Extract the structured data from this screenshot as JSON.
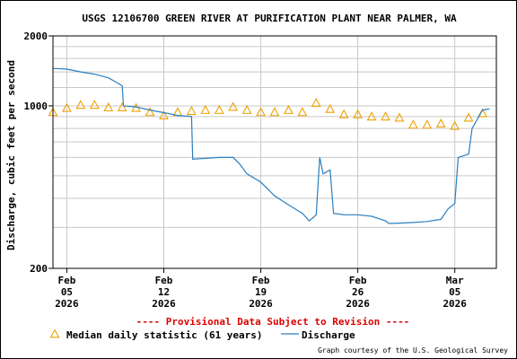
{
  "chart_data": {
    "type": "line",
    "title": "USGS 12106700 GREEN RIVER AT PURIFICATION PLANT NEAR PALMER, WA",
    "ylabel": "Discharge, cubic feet per second",
    "xlabel": "",
    "yscale": "log",
    "ylim": [
      200,
      2000
    ],
    "xlim": [
      "2026-02-04",
      "2026-03-08"
    ],
    "y_ticks": [
      {
        "value": 200,
        "label": "200"
      },
      {
        "value": 1000,
        "label": "1000"
      },
      {
        "value": 2000,
        "label": "2000"
      }
    ],
    "x_ticks": [
      {
        "date": "2026-02-05",
        "month": "Feb",
        "day": "05",
        "year": "2026"
      },
      {
        "date": "2026-02-12",
        "month": "Feb",
        "day": "12",
        "year": "2026"
      },
      {
        "date": "2026-02-19",
        "month": "Feb",
        "day": "19",
        "year": "2026"
      },
      {
        "date": "2026-02-26",
        "month": "Feb",
        "day": "26",
        "year": "2026"
      },
      {
        "date": "2026-03-05",
        "month": "Mar",
        "day": "05",
        "year": "2026"
      }
    ],
    "grid": true,
    "series": [
      {
        "name": "Median daily statistic (61 years)",
        "kind": "marker-triangle",
        "color": "#f0a000",
        "points": [
          [
            "2026-02-04",
            940
          ],
          [
            "2026-02-05",
            980
          ],
          [
            "2026-02-06",
            1010
          ],
          [
            "2026-02-07",
            1010
          ],
          [
            "2026-02-08",
            985
          ],
          [
            "2026-02-09",
            985
          ],
          [
            "2026-02-10",
            980
          ],
          [
            "2026-02-11",
            940
          ],
          [
            "2026-02-12",
            910
          ],
          [
            "2026-02-13",
            940
          ],
          [
            "2026-02-14",
            950
          ],
          [
            "2026-02-15",
            960
          ],
          [
            "2026-02-16",
            960
          ],
          [
            "2026-02-17",
            990
          ],
          [
            "2026-02-18",
            960
          ],
          [
            "2026-02-19",
            940
          ],
          [
            "2026-02-20",
            940
          ],
          [
            "2026-02-21",
            960
          ],
          [
            "2026-02-22",
            940
          ],
          [
            "2026-02-23",
            1030
          ],
          [
            "2026-02-24",
            970
          ],
          [
            "2026-02-25",
            920
          ],
          [
            "2026-02-26",
            920
          ],
          [
            "2026-02-27",
            900
          ],
          [
            "2026-02-28",
            900
          ],
          [
            "2026-03-01",
            890
          ],
          [
            "2026-03-02",
            830
          ],
          [
            "2026-03-03",
            830
          ],
          [
            "2026-03-04",
            840
          ],
          [
            "2026-03-05",
            820
          ],
          [
            "2026-03-06",
            890
          ],
          [
            "2026-03-07",
            930
          ]
        ]
      },
      {
        "name": "Discharge",
        "kind": "line",
        "color": "#2a7fc0",
        "points": [
          [
            "2026-02-04T00:00",
            1450
          ],
          [
            "2026-02-05T00:00",
            1440
          ],
          [
            "2026-02-06T00:00",
            1400
          ],
          [
            "2026-02-07T00:00",
            1370
          ],
          [
            "2026-02-08T00:00",
            1320
          ],
          [
            "2026-02-08T12:00",
            1270
          ],
          [
            "2026-02-09T00:00",
            1220
          ],
          [
            "2026-02-09T02:00",
            1000
          ],
          [
            "2026-02-10T00:00",
            990
          ],
          [
            "2026-02-11T00:00",
            960
          ],
          [
            "2026-02-12T00:00",
            935
          ],
          [
            "2026-02-13T00:00",
            910
          ],
          [
            "2026-02-14T00:00",
            900
          ],
          [
            "2026-02-14T02:00",
            590
          ],
          [
            "2026-02-15T00:00",
            595
          ],
          [
            "2026-02-16T00:00",
            600
          ],
          [
            "2026-02-17T00:00",
            600
          ],
          [
            "2026-02-17T12:00",
            560
          ],
          [
            "2026-02-18T00:00",
            510
          ],
          [
            "2026-02-19T00:00",
            470
          ],
          [
            "2026-02-20T00:00",
            410
          ],
          [
            "2026-02-21T00:00",
            375
          ],
          [
            "2026-02-22T00:00",
            345
          ],
          [
            "2026-02-22T12:00",
            320
          ],
          [
            "2026-02-23T00:00",
            340
          ],
          [
            "2026-02-23T06:00",
            600
          ],
          [
            "2026-02-23T12:00",
            510
          ],
          [
            "2026-02-24T00:00",
            530
          ],
          [
            "2026-02-24T06:00",
            345
          ],
          [
            "2026-02-25T00:00",
            340
          ],
          [
            "2026-02-26T00:00",
            340
          ],
          [
            "2026-02-27T00:00",
            335
          ],
          [
            "2026-02-28T00:00",
            320
          ],
          [
            "2026-02-28T06:00",
            312
          ],
          [
            "2026-03-01T00:00",
            313
          ],
          [
            "2026-03-02T00:00",
            315
          ],
          [
            "2026-03-03T00:00",
            318
          ],
          [
            "2026-03-04T00:00",
            325
          ],
          [
            "2026-03-04T12:00",
            360
          ],
          [
            "2026-03-05T00:00",
            380
          ],
          [
            "2026-03-05T06:00",
            600
          ],
          [
            "2026-03-06T00:00",
            620
          ],
          [
            "2026-03-06T06:00",
            800
          ],
          [
            "2026-03-07T00:00",
            960
          ],
          [
            "2026-03-07T12:00",
            970
          ]
        ]
      }
    ],
    "legend": {
      "placement": "bottom",
      "items": [
        "Median daily statistic (61 years)",
        "Discharge"
      ]
    }
  },
  "provisional_notice": "---- Provisional Data Subject to Revision ----",
  "credit": "Graph courtesy of the U.S. Geological Survey"
}
